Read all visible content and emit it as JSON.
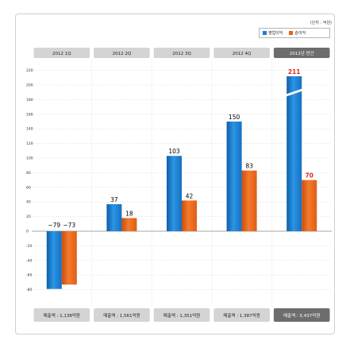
{
  "unit_label": "(단위 : 억원)",
  "legend": [
    {
      "name": "영업이익",
      "color": "#1d7fd0",
      "icon": "blue-square"
    },
    {
      "name": "순이익",
      "color": "#e8641c",
      "icon": "orange-square"
    }
  ],
  "colors": {
    "header_normal": "#d4d4d4",
    "header_total": "#6d6d6d",
    "label_normal": "#000000",
    "label_highlight": "#d62b20",
    "grid": "#dddddd"
  },
  "chart_data": {
    "type": "bar",
    "categories": [
      "2012 1Q",
      "2012 2Q",
      "2012 3Q",
      "2012 4Q",
      "2012년 연간"
    ],
    "series": [
      {
        "name": "영업이익",
        "values": [
          -79,
          37,
          103,
          150,
          211
        ]
      },
      {
        "name": "순이익",
        "values": [
          -73,
          18,
          42,
          83,
          70
        ]
      }
    ],
    "value_labels": [
      [
        "−79",
        "37",
        "103",
        "150",
        "211"
      ],
      [
        "−73",
        "18",
        "42",
        "83",
        "70"
      ]
    ],
    "highlight_category_index": 4,
    "axis_break_on_category": 4,
    "ylim": [
      -80,
      220
    ],
    "yticks": [
      220,
      200,
      180,
      160,
      140,
      120,
      100,
      80,
      60,
      40,
      20,
      0,
      -20,
      -40,
      -60,
      -80
    ],
    "sales_labels": [
      "매출액 : 1,138억원",
      "매출액 : 1,561억원",
      "매출액 : 1,351억원",
      "매출액 : 1,387억원",
      "매출액 : 5,437억원"
    ],
    "grid": true,
    "legend_position": "top-right"
  }
}
